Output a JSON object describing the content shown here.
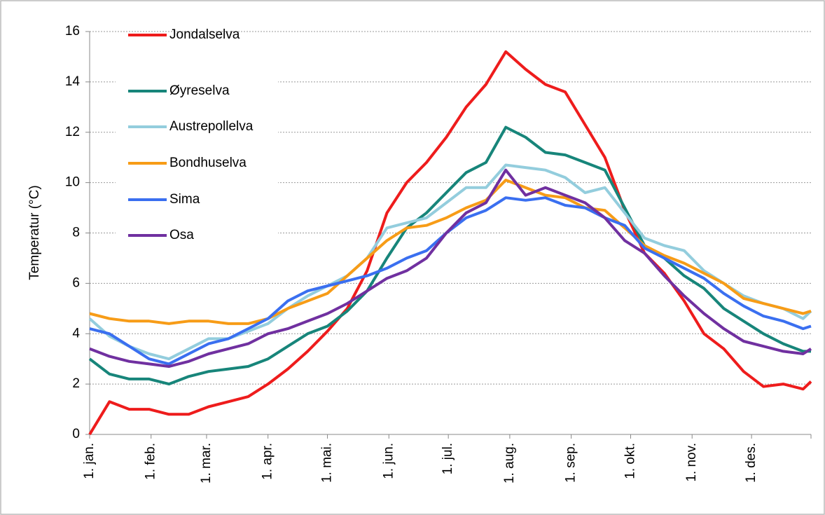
{
  "chart_data": {
    "type": "line",
    "y_label": "Temperatur (°C)",
    "x": [
      1,
      11,
      21,
      31,
      41,
      51,
      61,
      71,
      81,
      91,
      101,
      111,
      121,
      131,
      141,
      151,
      161,
      171,
      181,
      191,
      201,
      211,
      221,
      231,
      241,
      251,
      261,
      271,
      281,
      291,
      301,
      311,
      321,
      331,
      341,
      351,
      361,
      365
    ],
    "xlim": [
      1,
      365
    ],
    "xticks": [
      {
        "value": 1,
        "label": "1. jan."
      },
      {
        "value": 32,
        "label": "1. feb."
      },
      {
        "value": 60,
        "label": "1. mar."
      },
      {
        "value": 91,
        "label": "1. apr."
      },
      {
        "value": 121,
        "label": "1. mai."
      },
      {
        "value": 152,
        "label": "1. jun."
      },
      {
        "value": 182,
        "label": "1. jul."
      },
      {
        "value": 213,
        "label": "1. aug."
      },
      {
        "value": 244,
        "label": "1. sep."
      },
      {
        "value": 274,
        "label": "1. okt."
      },
      {
        "value": 305,
        "label": "1. nov."
      },
      {
        "value": 335,
        "label": "1. des."
      }
    ],
    "ylim": [
      0,
      16
    ],
    "yticks": [
      0,
      2,
      4,
      6,
      8,
      10,
      12,
      14,
      16
    ],
    "grid": true,
    "legend": "upper left",
    "series": [
      {
        "name": "Jondalselva",
        "color": "#ee1c1c",
        "values": [
          0,
          1.3,
          1.0,
          1.0,
          0.8,
          0.8,
          1.1,
          1.3,
          1.5,
          2.0,
          2.6,
          3.3,
          4.1,
          5.0,
          6.5,
          8.8,
          10.0,
          10.8,
          11.8,
          13.0,
          13.9,
          15.2,
          14.5,
          13.9,
          13.6,
          12.3,
          11.0,
          8.9,
          7.2,
          6.4,
          5.3,
          4.0,
          3.4,
          2.5,
          1.9,
          2.0,
          1.8,
          2.1
        ]
      },
      {
        "name": "Øyreselva",
        "color": "#17857a",
        "values": [
          3.0,
          2.4,
          2.2,
          2.2,
          2.0,
          2.3,
          2.5,
          2.6,
          2.7,
          3.0,
          3.5,
          4.0,
          4.3,
          4.9,
          5.7,
          7.0,
          8.2,
          8.8,
          9.6,
          10.4,
          10.8,
          12.2,
          11.8,
          11.2,
          11.1,
          10.8,
          10.5,
          9.0,
          7.5,
          7.0,
          6.3,
          5.8,
          5.0,
          4.5,
          4.0,
          3.6,
          3.3,
          3.3
        ]
      },
      {
        "name": "Austrepollelva",
        "color": "#93cddd",
        "values": [
          4.6,
          3.9,
          3.5,
          3.2,
          3.0,
          3.4,
          3.8,
          3.8,
          4.1,
          4.4,
          5.0,
          5.5,
          5.9,
          6.3,
          7.0,
          8.2,
          8.4,
          8.6,
          9.2,
          9.8,
          9.8,
          10.7,
          10.6,
          10.5,
          10.2,
          9.6,
          9.8,
          8.8,
          7.8,
          7.5,
          7.3,
          6.5,
          6.0,
          5.5,
          5.2,
          5.0,
          4.6,
          4.9
        ]
      },
      {
        "name": "Bondhuselva",
        "color": "#f79c17",
        "values": [
          4.8,
          4.6,
          4.5,
          4.5,
          4.4,
          4.5,
          4.5,
          4.4,
          4.4,
          4.6,
          5.0,
          5.3,
          5.6,
          6.3,
          7.0,
          7.7,
          8.2,
          8.3,
          8.6,
          9.0,
          9.3,
          10.1,
          9.8,
          9.5,
          9.4,
          9.0,
          8.9,
          8.2,
          7.5,
          7.1,
          6.8,
          6.4,
          6.0,
          5.4,
          5.2,
          5.0,
          4.8,
          4.9
        ]
      },
      {
        "name": "Sima",
        "color": "#3a6ff0",
        "values": [
          4.2,
          4.0,
          3.5,
          3.0,
          2.8,
          3.2,
          3.6,
          3.8,
          4.2,
          4.6,
          5.3,
          5.7,
          5.9,
          6.1,
          6.3,
          6.6,
          7.0,
          7.3,
          8.0,
          8.6,
          8.9,
          9.4,
          9.3,
          9.4,
          9.1,
          9.0,
          8.6,
          8.3,
          7.4,
          7.0,
          6.6,
          6.2,
          5.6,
          5.1,
          4.7,
          4.5,
          4.2,
          4.3
        ]
      },
      {
        "name": "Osa",
        "color": "#7030a0",
        "values": [
          3.4,
          3.1,
          2.9,
          2.8,
          2.7,
          2.9,
          3.2,
          3.4,
          3.6,
          4.0,
          4.2,
          4.5,
          4.8,
          5.2,
          5.7,
          6.2,
          6.5,
          7.0,
          8.0,
          8.8,
          9.2,
          10.5,
          9.5,
          9.8,
          9.5,
          9.2,
          8.6,
          7.7,
          7.2,
          6.3,
          5.5,
          4.8,
          4.2,
          3.7,
          3.5,
          3.3,
          3.2,
          3.4
        ]
      }
    ]
  }
}
